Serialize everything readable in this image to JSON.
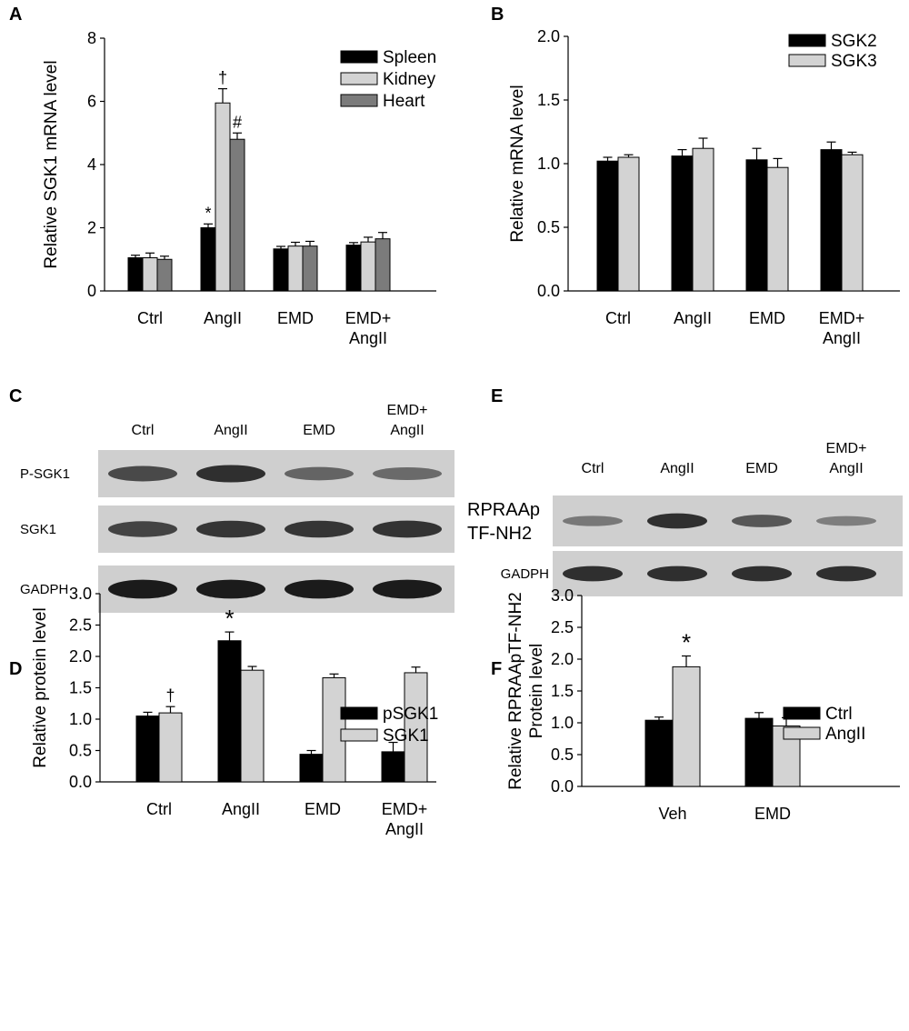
{
  "figure": {
    "panels": {
      "A": "A",
      "B": "B",
      "C": "C",
      "D": "D",
      "E": "E",
      "F": "F"
    }
  },
  "blots": {
    "C": {
      "lanes": [
        "Ctrl",
        "AngII",
        "EMD",
        "EMD+\nAngII"
      ],
      "rows": [
        {
          "label": "P-SGK1",
          "intensities": [
            0.65,
            0.85,
            0.45,
            0.4
          ]
        },
        {
          "label": "SGK1",
          "intensities": [
            0.7,
            0.8,
            0.8,
            0.82
          ]
        },
        {
          "label": "GADPH",
          "intensities": [
            1.0,
            1.0,
            1.0,
            1.0
          ]
        }
      ]
    },
    "E": {
      "lanes": [
        "Ctrl",
        "AngII",
        "EMD",
        "EMD+\nAngII"
      ],
      "rows": [
        {
          "label": "RPRAAp\nTF-NH2",
          "intensities": [
            0.3,
            0.85,
            0.55,
            0.25
          ]
        },
        {
          "label": "GADPH",
          "intensities": [
            0.85,
            0.85,
            0.85,
            0.85
          ]
        }
      ]
    }
  },
  "chart_data": [
    {
      "panel": "A",
      "type": "bar",
      "categories": [
        "Ctrl",
        "AngII",
        "EMD",
        "EMD+\nAngII"
      ],
      "series": [
        {
          "name": "Spleen",
          "color": "#000000",
          "values": [
            1.05,
            2.0,
            1.33,
            1.45
          ],
          "errors": [
            0.08,
            0.12,
            0.08,
            0.08
          ]
        },
        {
          "name": "Kidney",
          "color": "#d3d3d3",
          "values": [
            1.05,
            5.95,
            1.42,
            1.55
          ],
          "errors": [
            0.15,
            0.45,
            0.12,
            0.15
          ]
        },
        {
          "name": "Heart",
          "color": "#7b7b7b",
          "values": [
            1.0,
            4.8,
            1.42,
            1.65
          ],
          "errors": [
            0.1,
            0.2,
            0.15,
            0.2
          ]
        }
      ],
      "annotations": [
        {
          "category": 1,
          "series": 0,
          "text": "*"
        },
        {
          "category": 1,
          "series": 1,
          "text": "†"
        },
        {
          "category": 1,
          "series": 2,
          "text": "#"
        }
      ],
      "ylabel": "Relative SGK1 mRNA level",
      "ylim": [
        0,
        8
      ],
      "yticks": [
        0,
        2,
        4,
        6,
        8
      ],
      "ytick_labels": [
        "0",
        "2",
        "4",
        "6",
        "8"
      ],
      "legend_position": "top-right"
    },
    {
      "panel": "B",
      "type": "bar",
      "categories": [
        "Ctrl",
        "AngII",
        "EMD",
        "EMD+\nAngII"
      ],
      "series": [
        {
          "name": "SGK2",
          "color": "#000000",
          "values": [
            1.02,
            1.06,
            1.03,
            1.11
          ],
          "errors": [
            0.03,
            0.05,
            0.09,
            0.06
          ]
        },
        {
          "name": "SGK3",
          "color": "#d3d3d3",
          "values": [
            1.05,
            1.12,
            0.97,
            1.07
          ],
          "errors": [
            0.02,
            0.08,
            0.07,
            0.02
          ]
        }
      ],
      "annotations": [],
      "ylabel": "Relative mRNA level",
      "ylim": [
        0,
        2.0
      ],
      "yticks": [
        0,
        0.5,
        1.0,
        1.5,
        2.0
      ],
      "ytick_labels": [
        "0.0",
        "0.5",
        "1.0",
        "1.5",
        "2.0"
      ],
      "legend_position": "top-right"
    },
    {
      "panel": "D",
      "type": "bar",
      "categories": [
        "Ctrl",
        "AngII",
        "EMD",
        "EMD+\nAngII"
      ],
      "series": [
        {
          "name": "pSGK1",
          "color": "#000000",
          "values": [
            1.05,
            2.25,
            0.44,
            0.48
          ],
          "errors": [
            0.06,
            0.14,
            0.06,
            0.15
          ]
        },
        {
          "name": "SGK1",
          "color": "#d3d3d3",
          "values": [
            1.1,
            1.78,
            1.66,
            1.74
          ],
          "errors": [
            0.1,
            0.06,
            0.06,
            0.09
          ]
        }
      ],
      "annotations": [
        {
          "category": 0,
          "series": 1,
          "text": "†"
        },
        {
          "category": 1,
          "series": 0,
          "text": "*"
        }
      ],
      "ylabel": "Relative protein level",
      "ylim": [
        0,
        3.0
      ],
      "yticks": [
        0,
        0.5,
        1.0,
        1.5,
        2.0,
        2.5,
        3.0
      ],
      "ytick_labels": [
        "0.0",
        "0.5",
        "1.0",
        "1.5",
        "2.0",
        "2.5",
        "3.0"
      ],
      "legend_position": "top-right"
    },
    {
      "panel": "F",
      "type": "bar",
      "categories": [
        "Veh",
        "EMD"
      ],
      "series": [
        {
          "name": "Ctrl",
          "color": "#000000",
          "values": [
            1.04,
            1.07
          ],
          "errors": [
            0.05,
            0.09
          ]
        },
        {
          "name": "AngII",
          "color": "#d3d3d3",
          "values": [
            1.88,
            0.95
          ],
          "errors": [
            0.17,
            0.13
          ]
        }
      ],
      "annotations": [
        {
          "category": 0,
          "series": 1,
          "text": "*"
        }
      ],
      "ylabel": "Relative RPRAApTF-NH2\nProtein level",
      "ylim": [
        0,
        3.0
      ],
      "yticks": [
        0,
        0.5,
        1.0,
        1.5,
        2.0,
        2.5,
        3.0
      ],
      "ytick_labels": [
        "0.0",
        "0.5",
        "1.0",
        "1.5",
        "2.0",
        "2.5",
        "3.0"
      ],
      "legend_position": "top-right"
    }
  ]
}
